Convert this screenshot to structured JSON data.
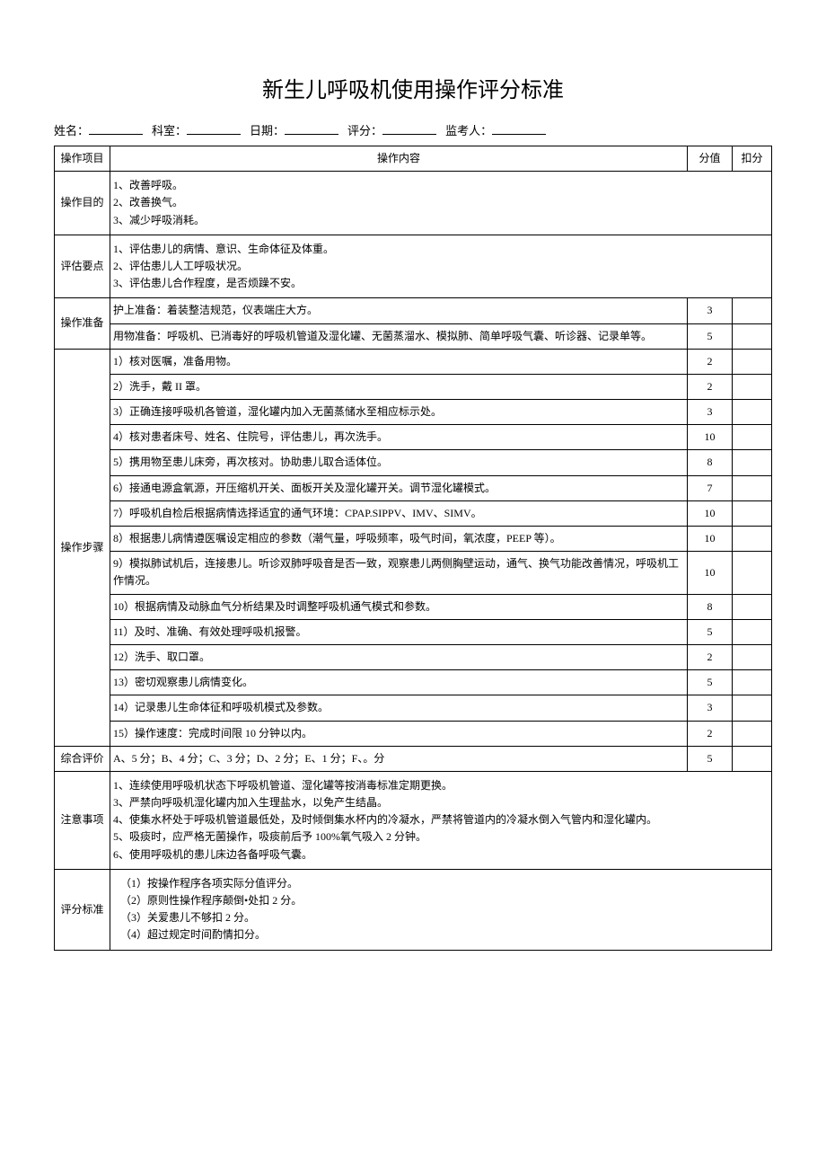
{
  "title": "新生儿呼吸机使用操作评分标准",
  "form": {
    "name_label": "姓名：",
    "dept_label": "科室：",
    "date_label": "日期：",
    "score_label": "评分：",
    "examiner_label": "监考人：",
    "blank_widths": [
      60,
      60,
      60,
      60,
      60
    ]
  },
  "headers": {
    "category": "操作项目",
    "content": "操作内容",
    "score": "分值",
    "deduct": "扣分"
  },
  "sections": [
    {
      "category": "操作目的",
      "rows": [
        {
          "content": "1、改善呼吸。\n2、改善换气。\n3、减少呼吸消耗。",
          "score": "",
          "deduct": "",
          "merged": true
        }
      ]
    },
    {
      "category": "评估要点",
      "rows": [
        {
          "content": "1、评估患儿的病情、意识、生命体征及体重。\n2、评估患儿人工呼吸状况。\n3、评估患儿合作程度，是否烦躁不安。",
          "score": "",
          "deduct": "",
          "merged": true
        }
      ]
    },
    {
      "category": "操作准备",
      "rows": [
        {
          "content": "护上准备：着装整洁规范，仪表端庄大方。",
          "score": "3",
          "deduct": ""
        },
        {
          "content": "用物准备：呼吸机、已消毒好的呼吸机管道及湿化罐、无菌蒸溜水、模拟肺、简单呼吸气囊、听诊器、记录单等。",
          "score": "5",
          "deduct": ""
        }
      ]
    },
    {
      "category": "操作步骤",
      "rows": [
        {
          "content": "1）核对医嘱，准备用物。",
          "score": "2",
          "deduct": ""
        },
        {
          "content": "2）洗手，戴 II 罩。",
          "score": "2",
          "deduct": ""
        },
        {
          "content": "3）正确连接呼吸机各管道，湿化罐内加入无菌蒸储水至相应标示处。",
          "score": "3",
          "deduct": ""
        },
        {
          "content": "4）核对患者床号、姓名、住院号，评估患儿，再次洗手。",
          "score": "10",
          "deduct": ""
        },
        {
          "content": "5）携用物至患儿床旁，再次核对。协助患儿取合适体位。",
          "score": "8",
          "deduct": ""
        },
        {
          "content": "6）接通电源盒氧源，开压缩机开关、面板开关及湿化罐开关。调节湿化罐模式。",
          "score": "7",
          "deduct": ""
        },
        {
          "content": "7）呼吸机自检后根据病情选择适宜的通气环境：CPAP.SIPPV、IMV、SIMV。",
          "score": "10",
          "deduct": ""
        },
        {
          "content": "8）根据患儿病情遵医嘱设定相应的参数（潮气量，呼吸频率，吸气时间，氧浓度，PEEP 等）。",
          "score": "10",
          "deduct": ""
        },
        {
          "content": "9）模拟肺试机后，连接患儿。听诊双肺呼吸音是否一致，观察患儿两侧胸壁运动，通气、换气功能改善情况，呼吸机工作情况。",
          "score": "10",
          "deduct": ""
        },
        {
          "content": "10）根据病情及动脉血气分析结果及时调整呼吸机通气模式和参数。",
          "score": "8",
          "deduct": ""
        },
        {
          "content": "11）及时、准确、有效处理呼吸机报警。",
          "score": "5",
          "deduct": ""
        },
        {
          "content": "12）洗手、取口罩。",
          "score": "2",
          "deduct": ""
        },
        {
          "content": "13）密切观察患儿病情变化。",
          "score": "5",
          "deduct": ""
        },
        {
          "content": "14）记录患儿生命体征和呼吸机模式及参数。",
          "score": "3",
          "deduct": ""
        },
        {
          "content": "15）操作速度：完成时间限 10 分钟以内。",
          "score": "2",
          "deduct": ""
        }
      ]
    },
    {
      "category": "综合评价",
      "rows": [
        {
          "content": "A、5 分；B、4 分；C、3 分；D、2 分；E、1 分；F、。分",
          "score": "5",
          "deduct": ""
        }
      ]
    },
    {
      "category": "注意事项",
      "rows": [
        {
          "content": "1、连续使用呼吸机状态下呼吸机管道、湿化罐等按消毒标准定期更换。\n3、严禁向呼吸机湿化罐内加入生理盐水，以免产生结晶。\n4、使集水杯处于呼吸机管道最低处，及时倾倒集水杯内的冷凝水，严禁将管道内的冷凝水倒入气管内和湿化罐内。\n5、吸痰时，应严格无菌操作，吸痰前后予 100%氧气吸入 2 分钟。\n6、使用呼吸机的患儿床边各备呼吸气囊。",
          "score": "",
          "deduct": "",
          "merged": true
        }
      ]
    },
    {
      "category": "评分标准",
      "rows": [
        {
          "content": "（1）按操作程序各项实际分值评分。\n（2）原则性操作程序颠倒•处扣 2 分。\n（3）关爱患儿不够扣 2 分。\n（4）超过规定时间酌情扣分。",
          "score": "",
          "deduct": "",
          "merged": true,
          "indent": true
        }
      ]
    }
  ],
  "styles": {
    "text_color": "#000000",
    "border_color": "#000000",
    "background_color": "#ffffff",
    "title_fontsize": 24,
    "body_fontsize": 12,
    "form_fontsize": 13
  }
}
